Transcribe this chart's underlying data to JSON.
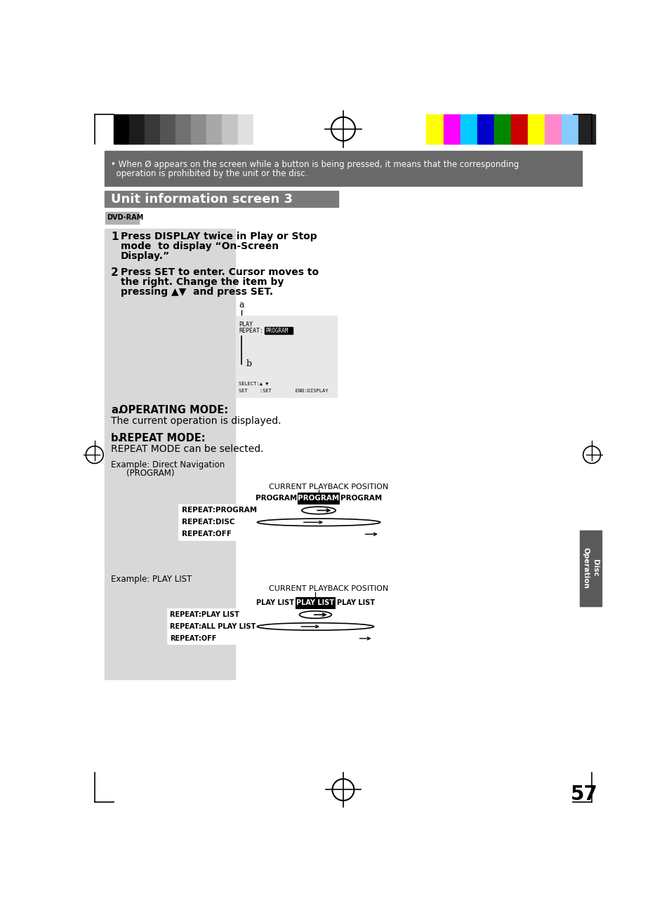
{
  "title": "Unit information screen 3",
  "page_number": "57",
  "bg_color": "#ffffff",
  "gray_bg": "#d8d8d8",
  "note_bg": "#696969",
  "note_text_line1": "• When Ø appears on the screen while a button is being pressed, it means that the corresponding",
  "note_text_line2": "  operation is prohibited by the unit or the disc.",
  "section_title_bg": "#7a7a7a",
  "section_title_text": "Unit information screen 3",
  "dvd_ram_label": "DVD-RAM",
  "step1_num": "1",
  "step1_lines": [
    "Press DISPLAY twice in Play or Stop",
    "mode  to display “On-Screen",
    "Display.”"
  ],
  "step2_num": "2",
  "step2_lines": [
    "Press SET to enter. Cursor moves to",
    "the right. Change the item by",
    "pressing ▲▼  and press SET."
  ],
  "a_mode_bold": "a.OPERATING MODE:",
  "a_mode_text": "The current operation is displayed.",
  "b_mode_bold": "b.REPEAT MODE:",
  "b_mode_text": "REPEAT MODE can be selected.",
  "example1_line1": "Example: Direct Navigation",
  "example1_line2": "         (PROGRAM)",
  "current_playback_label": "CURRENT PLAYBACK POSITION",
  "table1_col_headers": [
    "PROGRAM",
    "PROGRAM",
    "PROGRAM"
  ],
  "table1_row_headers": [
    "REPEAT:PROGRAM",
    "REPEAT:DISC",
    "REPEAT:OFF"
  ],
  "example2_text": "Example: PLAY LIST",
  "table2_col_headers": [
    "PLAY LIST",
    "PLAY LIST",
    "PLAY LIST"
  ],
  "table2_row_headers": [
    "REPEAT:PLAY LIST",
    "REPEAT:ALL PLAY LIST",
    "REPEAT:OFF"
  ],
  "side_tab_text": "Disc\nOperation",
  "side_tab_color": "#5a5a5a",
  "grayscale_colors": [
    "#000000",
    "#1c1c1c",
    "#383838",
    "#545454",
    "#707070",
    "#8c8c8c",
    "#a8a8a8",
    "#c4c4c4",
    "#e0e0e0",
    "#ffffff"
  ],
  "color_bar_colors": [
    "#ffff00",
    "#ff00ff",
    "#00ccff",
    "#0000cc",
    "#008800",
    "#cc0000",
    "#ffff00",
    "#ff88cc",
    "#88ccff",
    "#222222"
  ]
}
